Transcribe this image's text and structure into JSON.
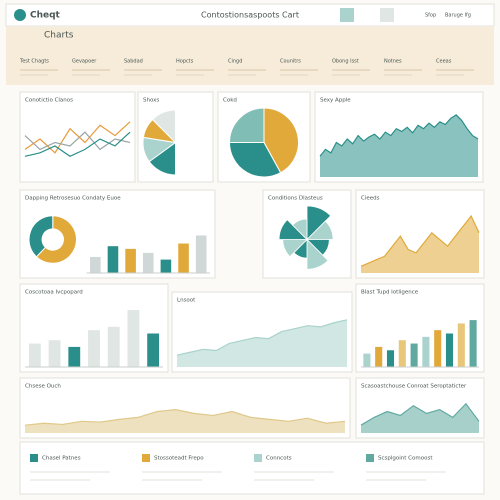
{
  "header": {
    "logo": "Cheqt",
    "title": "Contostionsaspoots Cart",
    "links": [
      "Sfop",
      "Baruge Ifg"
    ]
  },
  "toolbar": {
    "title": "Charts",
    "tabs": [
      "Test Chagts",
      "Gevapoer",
      "Sabdad",
      "Hopcts",
      "Cingd",
      "Counitrs",
      "Obong Isst",
      "Notnes",
      "Ceeas"
    ]
  },
  "panels": [
    {
      "type": "line",
      "title": "Conotictio Clanos",
      "ylim": [
        0,
        100
      ],
      "series": [
        {
          "color": "#e89a3c",
          "values": [
            40,
            55,
            35,
            70,
            50,
            75,
            60,
            80
          ]
        },
        {
          "color": "#9aa5a5",
          "values": [
            60,
            40,
            50,
            45,
            65,
            40,
            55,
            50
          ]
        },
        {
          "color": "#2a8f8a",
          "values": [
            30,
            35,
            45,
            30,
            40,
            55,
            45,
            65
          ]
        }
      ]
    },
    {
      "type": "halfpie",
      "title": "Shoxs",
      "values": [
        30,
        25,
        20,
        25
      ],
      "colors": [
        "#2a8f8a",
        "#a9d3cc",
        "#e0a93a",
        "#dfe6e4"
      ]
    },
    {
      "type": "pie",
      "title": "Cokd",
      "values": [
        42,
        33,
        25
      ],
      "colors": [
        "#e0a93a",
        "#2a8f8a",
        "#7fbdb5"
      ]
    },
    {
      "type": "area",
      "title": "Sexy Apple",
      "ylim": [
        0,
        100
      ],
      "color": "#2a8f8a",
      "values": [
        30,
        40,
        35,
        50,
        45,
        55,
        48,
        60,
        52,
        58,
        62,
        55,
        65,
        60,
        70,
        66,
        72,
        64,
        75,
        70,
        78,
        72,
        80,
        76,
        85,
        90,
        82,
        70,
        60,
        55
      ]
    },
    {
      "type": "bar",
      "title": "Dapping Retrosesuo Condaty Euoe",
      "ylim": [
        0,
        50
      ],
      "colors": [
        "#cfd8d6",
        "#2a8f8a",
        "#e0a93a"
      ],
      "values": [
        12,
        20,
        18,
        15,
        10,
        22,
        28
      ],
      "donut": [
        62,
        38
      ],
      "donut_colors": [
        "#e0a93a",
        "#2a8f8a"
      ]
    },
    {
      "type": "fan",
      "title": "Conditions Dlasteus",
      "values": [
        90,
        70,
        60,
        80,
        50,
        65,
        75,
        55
      ],
      "colors": [
        "#2a8f8a",
        "#a9d3cc"
      ]
    },
    {
      "type": "area",
      "title": "Cieeds",
      "ylim": [
        0,
        100
      ],
      "color": "#e0a93a",
      "values": [
        10,
        15,
        20,
        25,
        40,
        55,
        35,
        30,
        45,
        60,
        50,
        40,
        55,
        70,
        85,
        60
      ]
    },
    {
      "type": "bar",
      "title": "Coscotoaa Ivcpopard",
      "ylim": [
        0,
        100
      ],
      "colors": [
        "#dfe6e4",
        "#dfe6e4",
        "#2a8f8a",
        "#dfe6e4",
        "#dfe6e4",
        "#dfe6e4",
        "#2a8f8a"
      ],
      "values": [
        35,
        40,
        30,
        55,
        60,
        85,
        50
      ]
    },
    {
      "type": "area",
      "title": "Lnsoot",
      "ylim": [
        0,
        100
      ],
      "color": "#a9d3cc",
      "values": [
        20,
        25,
        30,
        28,
        40,
        45,
        50,
        48,
        60,
        65,
        70,
        68,
        75,
        80
      ]
    },
    {
      "type": "bar",
      "title": "Blast Tupd Iotligence",
      "ylim": [
        0,
        100
      ],
      "colors": [
        "#a9d3cc",
        "#e0a93a",
        "#2a8f8a",
        "#e8c77a",
        "#5fa9a1"
      ],
      "values": [
        20,
        30,
        25,
        40,
        35,
        45,
        55,
        50,
        65,
        70
      ]
    },
    {
      "type": "area",
      "title": "Chsese Ouch",
      "ylim": [
        0,
        100
      ],
      "color": "#e0c88a",
      "values": [
        20,
        25,
        22,
        30,
        28,
        35,
        40,
        55,
        60,
        50,
        45,
        55,
        40,
        35,
        30,
        38,
        25,
        30
      ]
    },
    {
      "type": "area",
      "title": "Scasoastchouse Conroat Seroptaticter",
      "ylim": [
        0,
        100
      ],
      "color": "#5fa9a1",
      "values": [
        20,
        40,
        55,
        45,
        70,
        50,
        60,
        40,
        75,
        30
      ]
    }
  ],
  "legend": [
    "Chasel Patnes",
    "Stossoteadt Frepo",
    "Conncots",
    "Scsplgoint Comoost"
  ]
}
